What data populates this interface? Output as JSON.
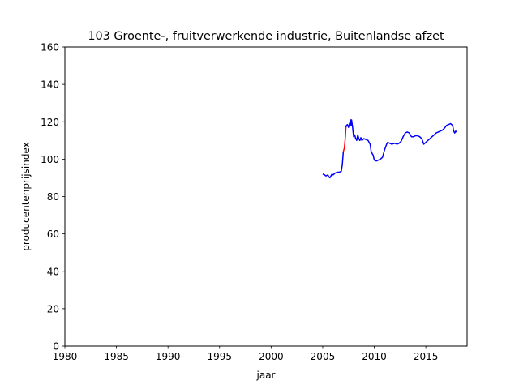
{
  "chart_data": {
    "type": "line",
    "title": "103 Groente-, fruitverwerkende industrie, Buitenlandse afzet",
    "xlabel": "jaar",
    "ylabel": "producentenprijsindex",
    "xlim": [
      1980,
      2019
    ],
    "ylim": [
      0,
      160
    ],
    "xticks": [
      1980,
      1985,
      1990,
      1995,
      2000,
      2005,
      2010,
      2015
    ],
    "yticks": [
      0,
      20,
      40,
      60,
      80,
      100,
      120,
      140,
      160
    ],
    "grid": false,
    "legend": "none",
    "series": [
      {
        "color": "#0000ff",
        "points": [
          [
            2005.0,
            92
          ],
          [
            2005.2,
            91.5
          ],
          [
            2005.3,
            91
          ],
          [
            2005.5,
            91.5
          ],
          [
            2005.6,
            90.5
          ],
          [
            2005.7,
            90
          ],
          [
            2005.8,
            91
          ],
          [
            2005.9,
            92
          ],
          [
            2006.0,
            91.5
          ],
          [
            2006.2,
            92.5
          ],
          [
            2006.4,
            93
          ],
          [
            2006.6,
            93
          ],
          [
            2006.8,
            93.5
          ],
          [
            2006.9,
            97
          ],
          [
            2007.0,
            104
          ]
        ]
      },
      {
        "color": "#ff0000",
        "points": [
          [
            2007.0,
            104
          ],
          [
            2007.1,
            106
          ],
          [
            2007.2,
            112
          ],
          [
            2007.25,
            117
          ]
        ]
      },
      {
        "color": "#0000ff",
        "points": [
          [
            2007.25,
            117
          ],
          [
            2007.3,
            118
          ],
          [
            2007.4,
            118.5
          ],
          [
            2007.5,
            117
          ],
          [
            2007.6,
            119
          ],
          [
            2007.7,
            121
          ],
          [
            2007.75,
            118
          ],
          [
            2007.8,
            121
          ],
          [
            2007.9,
            117
          ],
          [
            2008.0,
            112
          ],
          [
            2008.1,
            113
          ],
          [
            2008.2,
            111
          ],
          [
            2008.3,
            110
          ],
          [
            2008.4,
            113
          ],
          [
            2008.5,
            111
          ],
          [
            2008.6,
            110
          ],
          [
            2008.7,
            111.5
          ],
          [
            2008.8,
            110
          ],
          [
            2009.0,
            111
          ],
          [
            2009.2,
            110.5
          ],
          [
            2009.4,
            110
          ],
          [
            2009.6,
            108
          ],
          [
            2009.7,
            104
          ],
          [
            2009.8,
            103
          ],
          [
            2009.9,
            102
          ],
          [
            2010.0,
            99.5
          ],
          [
            2010.2,
            99
          ],
          [
            2010.4,
            99.5
          ],
          [
            2010.6,
            100
          ],
          [
            2010.8,
            101
          ],
          [
            2011.0,
            105
          ],
          [
            2011.2,
            108
          ],
          [
            2011.3,
            109
          ],
          [
            2011.5,
            108.5
          ],
          [
            2011.7,
            108
          ],
          [
            2012.0,
            108.5
          ],
          [
            2012.2,
            108
          ],
          [
            2012.4,
            108.5
          ],
          [
            2012.6,
            109.5
          ],
          [
            2012.8,
            112
          ],
          [
            2013.0,
            114
          ],
          [
            2013.2,
            114.5
          ],
          [
            2013.4,
            114
          ],
          [
            2013.6,
            112
          ],
          [
            2013.8,
            112
          ],
          [
            2014.0,
            112.5
          ],
          [
            2014.2,
            112.5
          ],
          [
            2014.4,
            112
          ],
          [
            2014.6,
            111
          ],
          [
            2014.8,
            108
          ],
          [
            2015.0,
            109
          ],
          [
            2015.2,
            110
          ],
          [
            2015.4,
            111
          ],
          [
            2015.6,
            112
          ],
          [
            2015.8,
            113
          ],
          [
            2016.0,
            114
          ],
          [
            2016.2,
            114.5
          ],
          [
            2016.4,
            115
          ],
          [
            2016.6,
            115.5
          ],
          [
            2016.8,
            116.5
          ],
          [
            2017.0,
            118
          ],
          [
            2017.2,
            118.5
          ],
          [
            2017.4,
            119
          ],
          [
            2017.6,
            118
          ],
          [
            2017.7,
            115
          ],
          [
            2017.8,
            114
          ],
          [
            2017.9,
            115
          ],
          [
            2018.0,
            114.5
          ]
        ]
      }
    ]
  }
}
